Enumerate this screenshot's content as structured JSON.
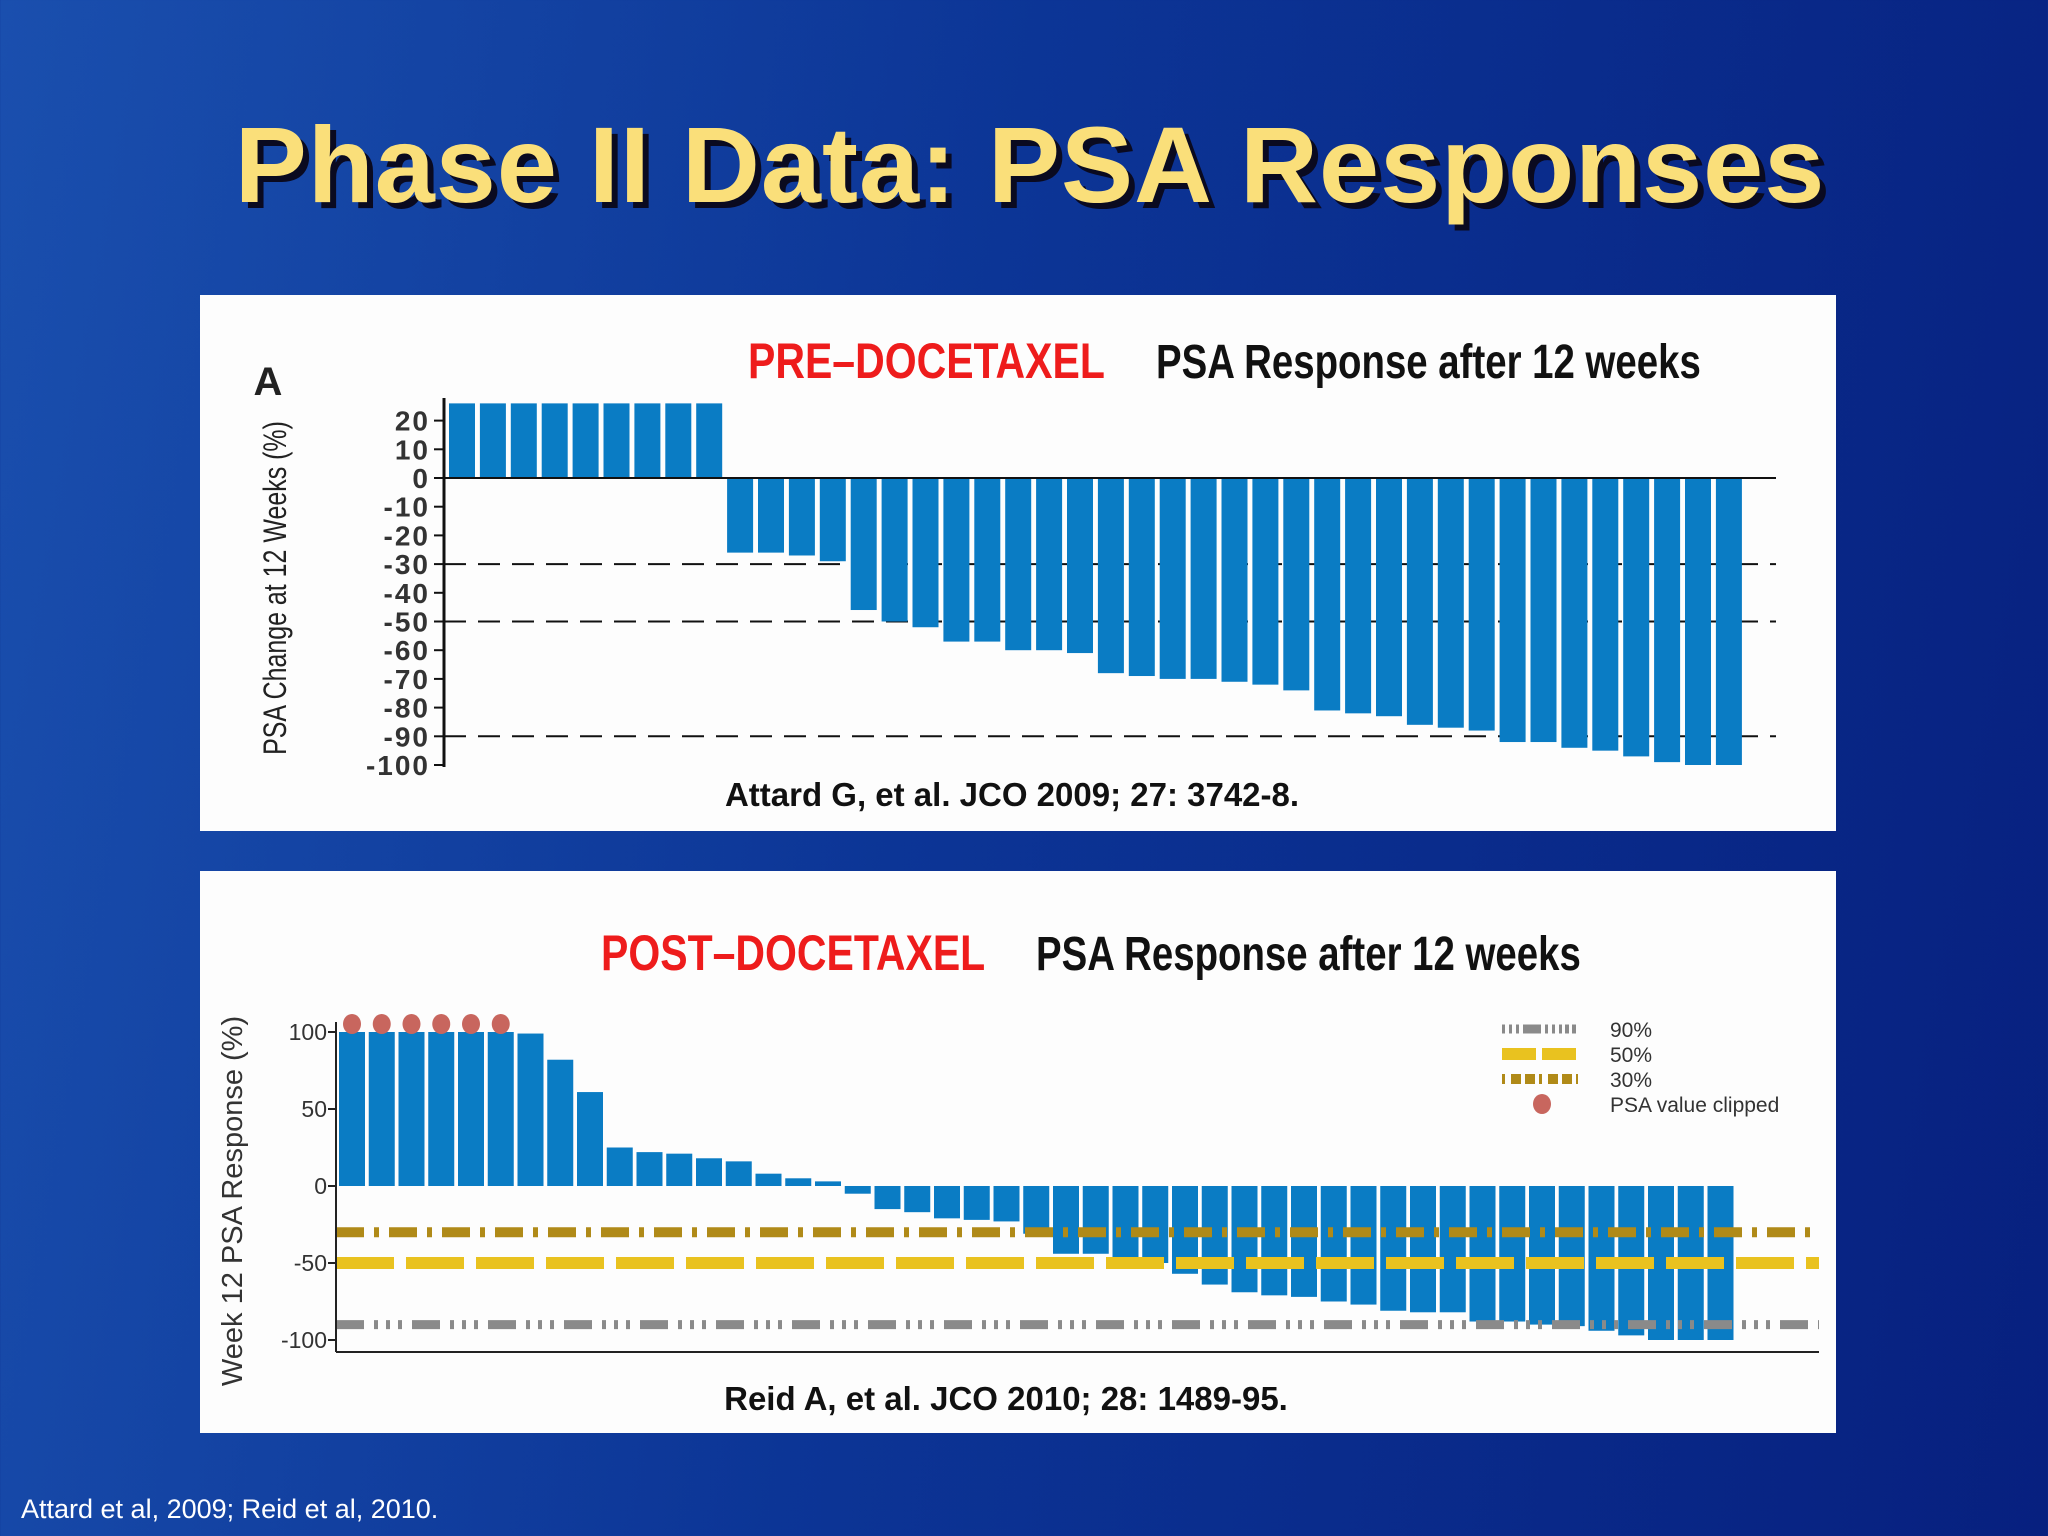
{
  "slide": {
    "title": "Phase II Data: PSA Responses",
    "footnote": "Attard et al, 2009; Reid et al, 2010."
  },
  "chart_data": [
    {
      "type": "bar",
      "panel_letter": "A",
      "label_pre": "PRE–DOCETAXEL",
      "title": "PSA Response after 12 weeks",
      "ylabel": "PSA Change at 12 Weeks (%)",
      "citation": "Attard G, et al. JCO 2009;  27:  3742-8.",
      "ylim": [
        -100,
        26
      ],
      "yticks": [
        "20",
        "10",
        "0",
        "-10",
        "-20",
        "-30",
        "-40",
        "-50",
        "-60",
        "-70",
        "-80",
        "-90",
        "-100"
      ],
      "ytick_values": [
        20,
        10,
        0,
        -10,
        -20,
        -30,
        -40,
        -50,
        -60,
        -70,
        -80,
        -90,
        -100
      ],
      "reference_lines": [
        -30,
        -50,
        -90
      ],
      "bar_color": "#0a7cc4",
      "values": [
        26,
        26,
        26,
        26,
        26,
        26,
        26,
        26,
        26,
        -26,
        -26,
        -27,
        -29,
        -46,
        -50,
        -52,
        -57,
        -57,
        -60,
        -60,
        -61,
        -68,
        -69,
        -70,
        -70,
        -71,
        -72,
        -74,
        -81,
        -82,
        -83,
        -86,
        -87,
        -88,
        -92,
        -92,
        -94,
        -95,
        -97,
        -99,
        -100,
        -100
      ]
    },
    {
      "type": "bar",
      "label_pre": "POST–DOCETAXEL",
      "title": "PSA Response after 12 weeks",
      "ylabel": "Week 12 PSA Response (%)",
      "citation": "Reid A, et al. JCO 2010;  28:  1489-95.",
      "ylim": [
        -108,
        108
      ],
      "yticks": [
        "100",
        "50",
        "0",
        "-50",
        "-100"
      ],
      "ytick_values": [
        100,
        50,
        0,
        -50,
        -100
      ],
      "bar_color": "#0a7cc4",
      "legend": [
        {
          "label": "90%",
          "value": -90,
          "color": "#8a8a8a",
          "style": "dash-triple-dot"
        },
        {
          "label": "50%",
          "value": -50,
          "color": "#e9c21f",
          "style": "dashed"
        },
        {
          "label": "30%",
          "value": -30,
          "color": "#b08a18",
          "style": "dash-dot"
        },
        {
          "label": "PSA value clipped",
          "color": "#c8665e",
          "style": "marker"
        }
      ],
      "values": [
        100,
        100,
        100,
        100,
        100,
        100,
        99,
        82,
        61,
        25,
        22,
        21,
        18,
        16,
        8,
        5,
        3,
        -5,
        -15,
        -17,
        -21,
        -22,
        -23,
        -31,
        -44,
        -44,
        -50,
        -50,
        -57,
        -64,
        -69,
        -71,
        -72,
        -75,
        -77,
        -81,
        -82,
        -82,
        -88,
        -88,
        -90,
        -91,
        -94,
        -97,
        -100,
        -100,
        -100
      ],
      "clipped": [
        true,
        true,
        true,
        true,
        true,
        true,
        false,
        false,
        false,
        false,
        false,
        false,
        false,
        false,
        false,
        false,
        false,
        false,
        false,
        false,
        false,
        false,
        false,
        false,
        false,
        false,
        false,
        false,
        false,
        false,
        false,
        false,
        false,
        false,
        false,
        false,
        false,
        false,
        false,
        false,
        false,
        false,
        false,
        false,
        false,
        false,
        false
      ]
    }
  ]
}
